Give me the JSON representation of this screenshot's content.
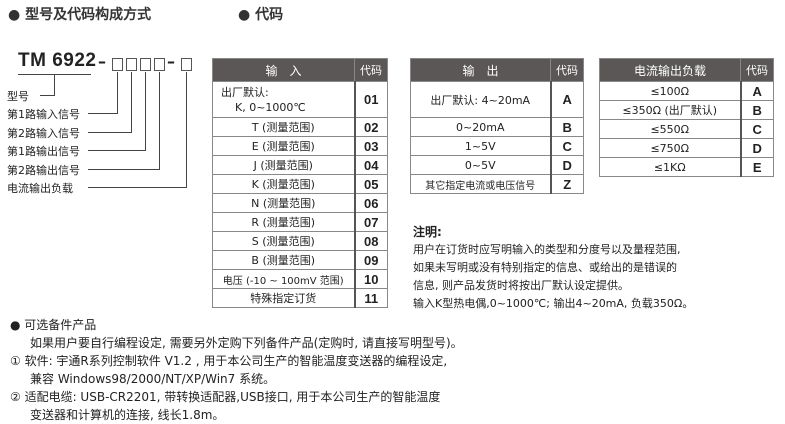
{
  "headings": {
    "left": "● 型号及代码构成方式",
    "right": "● 代码"
  },
  "model": {
    "prefix": "TM 6922",
    "sep": "–",
    "labels": [
      "型号",
      "第1路输入信号",
      "第2路输入信号",
      "第1路输出信号",
      "第2路输出信号",
      "电流输出负载"
    ]
  },
  "input_table": {
    "header": "输　入",
    "code_header": "代码",
    "rows": [
      {
        "label": "出厂默认:",
        "label2": "K, 0~1000℃",
        "code": "01"
      },
      {
        "label": "T (测量范围)",
        "code": "02"
      },
      {
        "label": "E (测量范围)",
        "code": "03"
      },
      {
        "label": "J (测量范围)",
        "code": "04"
      },
      {
        "label": "K (测量范围)",
        "code": "05"
      },
      {
        "label": "N (测量范围)",
        "code": "06"
      },
      {
        "label": "R (测量范围)",
        "code": "07"
      },
      {
        "label": "S (测量范围)",
        "code": "08"
      },
      {
        "label": "B (测量范围)",
        "code": "09"
      },
      {
        "label": "电压 (-10 ~ 100mV 范围)",
        "code": "10"
      },
      {
        "label": "特殊指定订货",
        "code": "11"
      }
    ]
  },
  "output_table": {
    "header": "输　出",
    "code_header": "代码",
    "rows": [
      {
        "label": "出厂默认: 4~20mA",
        "code": "A"
      },
      {
        "label": "0~20mA",
        "code": "B"
      },
      {
        "label": "1~5V",
        "code": "C"
      },
      {
        "label": "0~5V",
        "code": "D"
      },
      {
        "label": "其它指定电流或电压信号",
        "code": "Z"
      }
    ]
  },
  "load_table": {
    "header": "电流输出负载",
    "code_header": "代码",
    "rows": [
      {
        "label": "≤100Ω",
        "code": "A"
      },
      {
        "label": "≤350Ω (出厂默认)",
        "code": "B"
      },
      {
        "label": "≤550Ω",
        "code": "C"
      },
      {
        "label": "≤750Ω",
        "code": "D"
      },
      {
        "label": "≤1KΩ",
        "code": "E"
      }
    ]
  },
  "notes": {
    "title": "注明:",
    "lines": [
      "用户在订货时应写明输入的类型和分度号以及量程范围,",
      "如果未写明或没有特别指定的信息、或给出的是错误的",
      "信息, 则产品发货时将按出厂默认设定提供。",
      "输入K型热电偶,0~1000℃; 输出4~20mA, 负载350Ω。"
    ]
  },
  "accessories": {
    "title": "● 可选备件产品",
    "lines": [
      "如果用户要自行编程设定, 需要另外定购下列备件产品(定购时, 请直接写明型号)。",
      "① 软件: 宇通R系列控制软件 V1.2 , 用于本公司生产的智能温度变送器的编程设定,",
      "兼容 Windows98/2000/NT/XP/Win7 系统。",
      "② 适配电缆: USB-CR2201, 带转换适配器,USB接口, 用于本公司生产的智能温度",
      "变送器和计算机的连接, 线长1.8m。"
    ]
  }
}
